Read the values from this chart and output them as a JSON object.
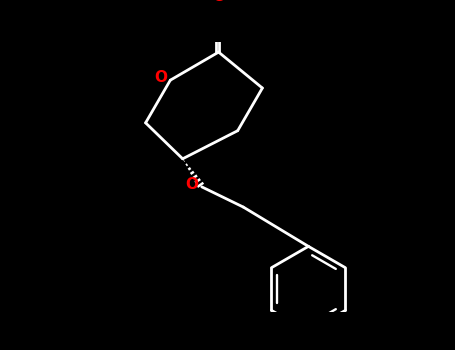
{
  "bg_color": "#000000",
  "bond_color": "#ffffff",
  "oxygen_color": "#ff0000",
  "line_width": 2.0,
  "fig_width": 4.55,
  "fig_height": 3.5,
  "dpi": 100,
  "font_size": 11
}
